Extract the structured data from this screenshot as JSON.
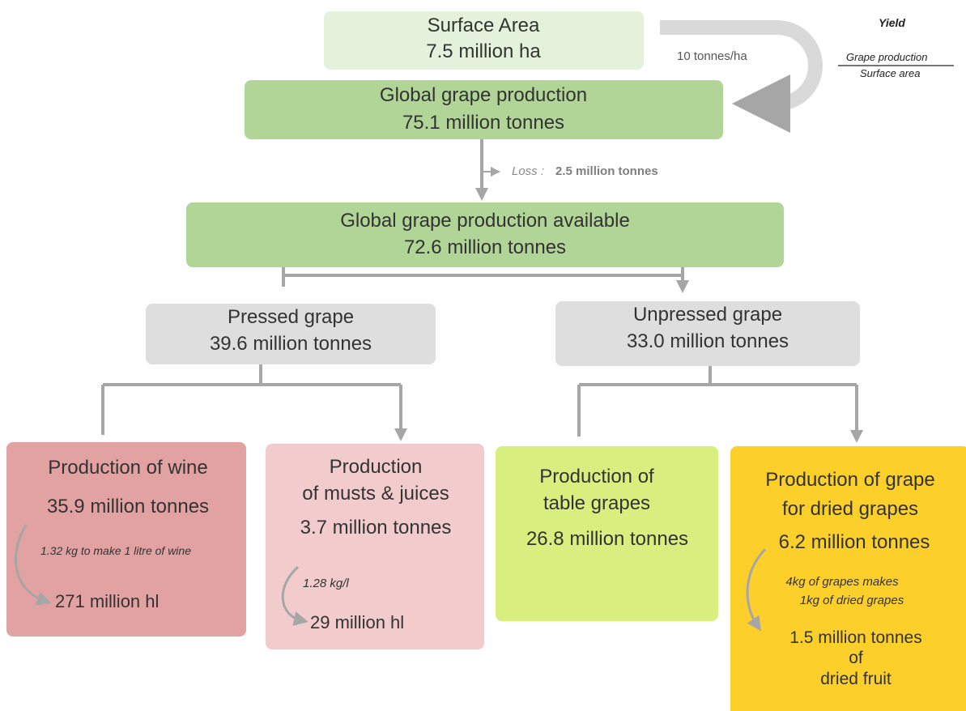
{
  "surface": {
    "title": "Surface Area",
    "value": "7.5 million ha"
  },
  "yield": {
    "rate": "10 tonnes/ha",
    "label": "Yield",
    "numerator": "Grape production",
    "denominator": "Surface area"
  },
  "global": {
    "title": "Global grape production",
    "value": "75.1 million tonnes"
  },
  "loss": {
    "label": "Loss :",
    "value": "2.5 million tonnes"
  },
  "available": {
    "title": "Global grape production available",
    "value": "72.6 million tonnes"
  },
  "pressed": {
    "title": "Pressed grape",
    "value": "39.6 million tonnes"
  },
  "unpressed": {
    "title": "Unpressed grape",
    "value": "33.0 million tonnes"
  },
  "wine": {
    "title": "Production of wine",
    "value": "35.9 million tonnes",
    "conversion": "1.32 kg to make 1 litre of wine",
    "result": "271 million hl"
  },
  "musts": {
    "title_lines": [
      "Production",
      "of musts & juices"
    ],
    "value": "3.7 million tonnes",
    "conversion": "1.28 kg/l",
    "result": "29 million hl"
  },
  "table": {
    "title_lines": [
      "Production of",
      "table grapes"
    ],
    "value": "26.8 million tonnes"
  },
  "dried": {
    "title_lines": [
      "Production of grape",
      "for dried grapes"
    ],
    "value": "6.2 million tonnes",
    "conversion_lines": [
      "4kg of grapes makes",
      "1kg of dried grapes"
    ],
    "result_lines": [
      "1.5 million tonnes",
      "of",
      "dried fruit"
    ]
  }
}
